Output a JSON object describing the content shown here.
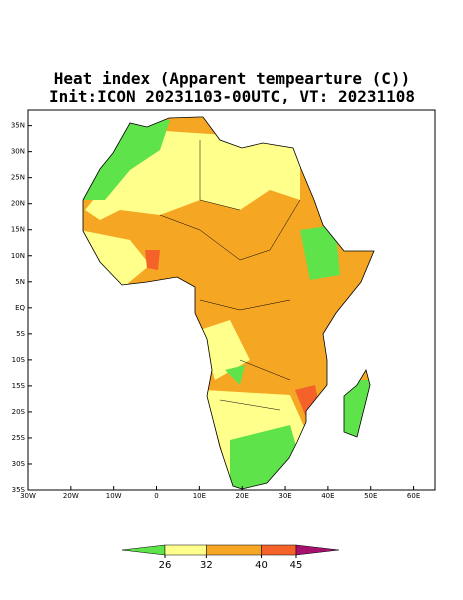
{
  "map": {
    "title": "Heat index (Apparent tempearture (C))",
    "subtitle": "Init:ICON 20231103-00UTC, VT: 20231108",
    "xlim": [
      -30,
      65
    ],
    "ylim": [
      -35,
      38
    ],
    "xticks": [
      {
        "value": -30,
        "label": "30W"
      },
      {
        "value": -20,
        "label": "20W"
      },
      {
        "value": -10,
        "label": "10W"
      },
      0,
      {
        "value": 10,
        "label": "10E"
      },
      {
        "value": 20,
        "label": "20E"
      },
      {
        "value": 30,
        "label": "30E"
      },
      {
        "value": 40,
        "label": "40E"
      },
      {
        "value": 50,
        "label": "50E"
      },
      {
        "value": 60,
        "label": "60E"
      }
    ],
    "yticks": [
      {
        "value": 35,
        "label": "35N"
      },
      {
        "value": 30,
        "label": "30N"
      },
      {
        "value": 25,
        "label": "25N"
      },
      {
        "value": 20,
        "label": "20N"
      },
      {
        "value": 15,
        "label": "15N"
      },
      {
        "value": 10,
        "label": "10N"
      },
      {
        "value": 5,
        "label": "5N"
      },
      {
        "value": 0,
        "label": "EQ"
      },
      {
        "value": -5,
        "label": "5S"
      },
      {
        "value": -10,
        "label": "10S"
      },
      {
        "value": -15,
        "label": "15S"
      },
      {
        "value": -20,
        "label": "20S"
      },
      {
        "value": -25,
        "label": "25S"
      },
      {
        "value": -30,
        "label": "30S"
      },
      {
        "value": -35,
        "label": "35S"
      }
    ],
    "colorbar": {
      "ticks": [
        26,
        32,
        40,
        45
      ],
      "colors": [
        "#5fe34b",
        "#ffff8c",
        "#f5a623",
        "#f4622a",
        "#a8106e"
      ]
    }
  }
}
